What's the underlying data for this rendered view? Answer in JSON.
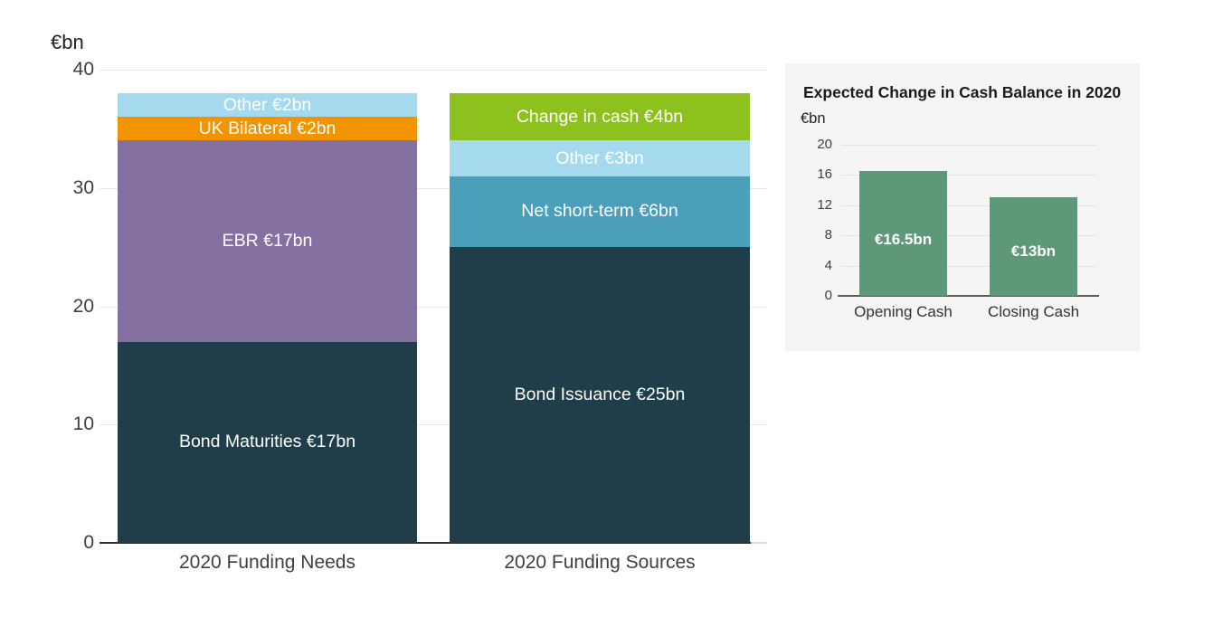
{
  "chart_data": [
    {
      "type": "bar",
      "stacked": true,
      "unit_label": "€bn",
      "ylim": [
        0,
        40
      ],
      "yticks": [
        0,
        10,
        20,
        30,
        40
      ],
      "grid": true,
      "categories": [
        "2020 Funding Needs",
        "2020 Funding Sources"
      ],
      "bars": [
        {
          "category": "2020 Funding Needs",
          "total": 38,
          "segments": [
            {
              "label": "Bond Maturities €17bn",
              "value": 17,
              "color": "#1f3e4a"
            },
            {
              "label": "EBR €17bn",
              "value": 17,
              "color": "#8571a1"
            },
            {
              "label": "UK Bilateral €2bn",
              "value": 2,
              "color": "#f29400"
            },
            {
              "label": "Other €2bn",
              "value": 2,
              "color": "#a5daee"
            }
          ]
        },
        {
          "category": "2020 Funding Sources",
          "total": 38,
          "segments": [
            {
              "label": "Bond Issuance €25bn",
              "value": 25,
              "color": "#1f3e4a"
            },
            {
              "label": "Net short-term €6bn",
              "value": 6,
              "color": "#4c9fba"
            },
            {
              "label": "Other €3bn",
              "value": 3,
              "color": "#a5daee"
            },
            {
              "label": "Change in cash €4bn",
              "value": 4,
              "color": "#8dc21e"
            }
          ]
        }
      ]
    },
    {
      "type": "bar",
      "title": "Expected Change in Cash Balance in 2020",
      "unit_label": "€bn",
      "ylim": [
        0,
        20
      ],
      "yticks": [
        0,
        4,
        8,
        12,
        16,
        20
      ],
      "grid": true,
      "panel_bg": "#f5f5f5",
      "bar_color": "#5f9878",
      "categories": [
        "Opening Cash",
        "Closing Cash"
      ],
      "values": [
        16.5,
        13
      ],
      "bar_labels": [
        "€16.5bn",
        "€13bn"
      ]
    }
  ]
}
